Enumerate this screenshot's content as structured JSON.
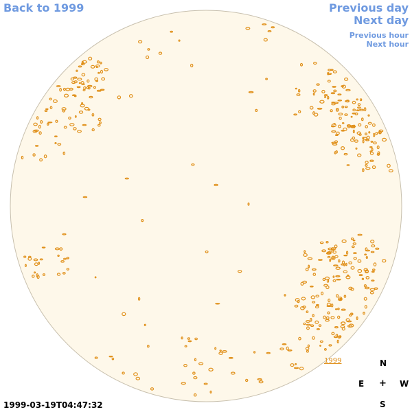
{
  "nav": {
    "back_label": "Back to 1999",
    "previous_day_label": "Previous day",
    "next_day_label": "Next day",
    "previous_hour_label": "Previous hour",
    "next_hour_label": "Next hour"
  },
  "sun": {
    "disk_fill": "#fef8ea",
    "disk_stroke": "#c8c0ae",
    "contour_color": "#e0901a"
  },
  "year_marker": "1999",
  "compass": {
    "north": "N",
    "east": "E",
    "center": "+",
    "west": "W",
    "south": "S"
  },
  "timestamp": "1999-03-19T04:47:32",
  "colors": {
    "link": "#6f9ae0",
    "text": "#000000"
  }
}
